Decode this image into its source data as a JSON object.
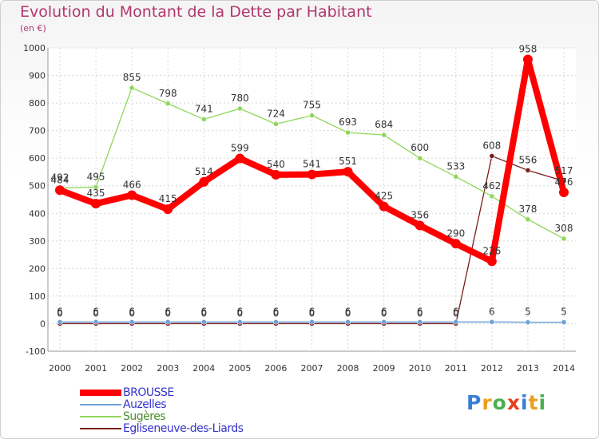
{
  "chart_data": {
    "type": "line",
    "title": "Evolution du Montant de la Dette par Habitant",
    "subtitle": "(en €)",
    "x": [
      "2000",
      "2001",
      "2002",
      "2003",
      "2004",
      "2005",
      "2006",
      "2007",
      "2008",
      "2009",
      "2010",
      "2011",
      "2012",
      "2013",
      "2014"
    ],
    "ylim": [
      -100,
      1000
    ],
    "yticks": [
      -100,
      0,
      100,
      200,
      300,
      400,
      500,
      600,
      700,
      800,
      900,
      1000
    ],
    "grid": true,
    "legend": "bottom-left",
    "series": [
      {
        "name": "BROUSSE",
        "color": "#ff0000",
        "values": [
          484,
          435,
          466,
          415,
          514,
          599,
          540,
          541,
          551,
          425,
          356,
          290,
          226,
          958,
          476
        ]
      },
      {
        "name": "Auzelles",
        "color": "#6ea1d8",
        "values": [
          6,
          6,
          6,
          6,
          6,
          6,
          6,
          6,
          6,
          6,
          6,
          6,
          6,
          5,
          5
        ]
      },
      {
        "name": "Sugères",
        "color": "#8fd65a",
        "values": [
          492,
          495,
          855,
          798,
          741,
          780,
          724,
          755,
          693,
          684,
          600,
          533,
          462,
          378,
          308
        ]
      },
      {
        "name": "Egliseneuve-des-Liards",
        "color": "#7a1c1c",
        "values": [
          0,
          0,
          0,
          0,
          0,
          0,
          0,
          0,
          0,
          0,
          0,
          0,
          608,
          556,
          517
        ]
      }
    ]
  },
  "logo": {
    "text": "Proxiti",
    "colors": [
      "#3a7fd5",
      "#e8a020",
      "#4caf50",
      "#e8401c",
      "#3a7fd5",
      "#e8a020",
      "#4caf50"
    ]
  }
}
